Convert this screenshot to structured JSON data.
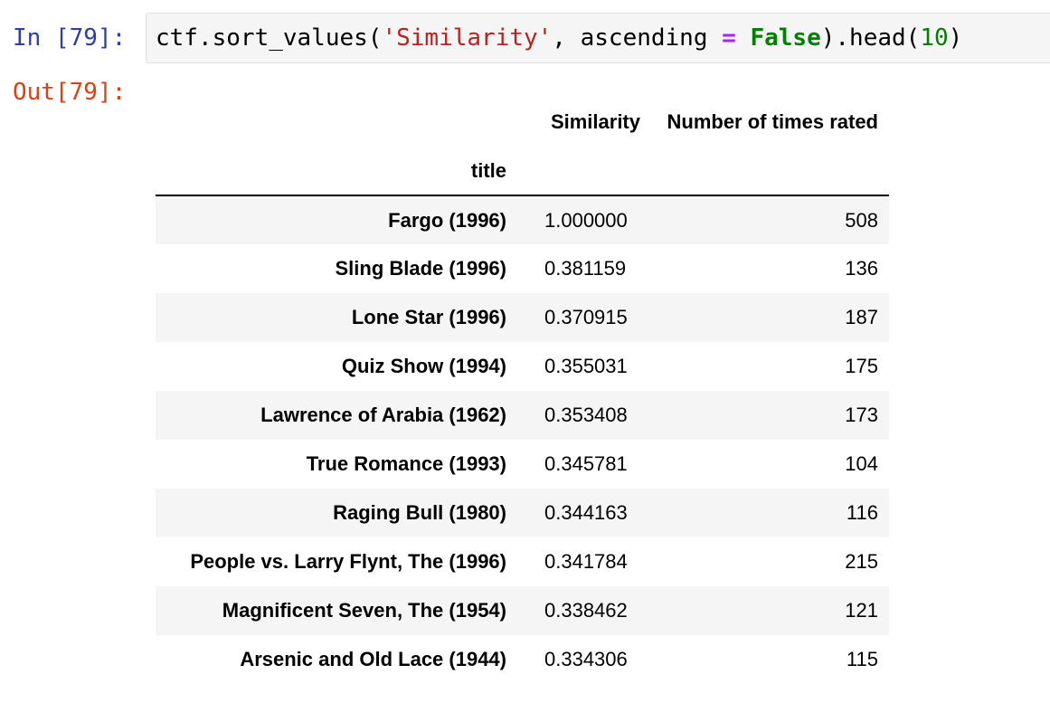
{
  "cell": {
    "in_prompt": "In [79]:",
    "out_prompt": "Out[79]:",
    "code": {
      "obj": "ctf.sort_values(",
      "str": "'Similarity'",
      "mid": ", ascending ",
      "op": "=",
      "sp": " ",
      "kw": "False",
      "tail1": ").head(",
      "num": "10",
      "tail2": ")"
    }
  },
  "table": {
    "columns": [
      "Similarity",
      "Number of times rated"
    ],
    "index_name": "title",
    "rows": [
      {
        "title": "Fargo (1996)",
        "similarity": "1.000000",
        "rated": "508"
      },
      {
        "title": "Sling Blade (1996)",
        "similarity": "0.381159",
        "rated": "136"
      },
      {
        "title": "Lone Star (1996)",
        "similarity": "0.370915",
        "rated": "187"
      },
      {
        "title": "Quiz Show (1994)",
        "similarity": "0.355031",
        "rated": "175"
      },
      {
        "title": "Lawrence of Arabia (1962)",
        "similarity": "0.353408",
        "rated": "173"
      },
      {
        "title": "True Romance (1993)",
        "similarity": "0.345781",
        "rated": "104"
      },
      {
        "title": "Raging Bull (1980)",
        "similarity": "0.344163",
        "rated": "116"
      },
      {
        "title": "People vs. Larry Flynt, The (1996)",
        "similarity": "0.341784",
        "rated": "215"
      },
      {
        "title": "Magnificent Seven, The (1954)",
        "similarity": "0.338462",
        "rated": "121"
      },
      {
        "title": "Arsenic and Old Lace (1944)",
        "similarity": "0.334306",
        "rated": "115"
      }
    ]
  }
}
